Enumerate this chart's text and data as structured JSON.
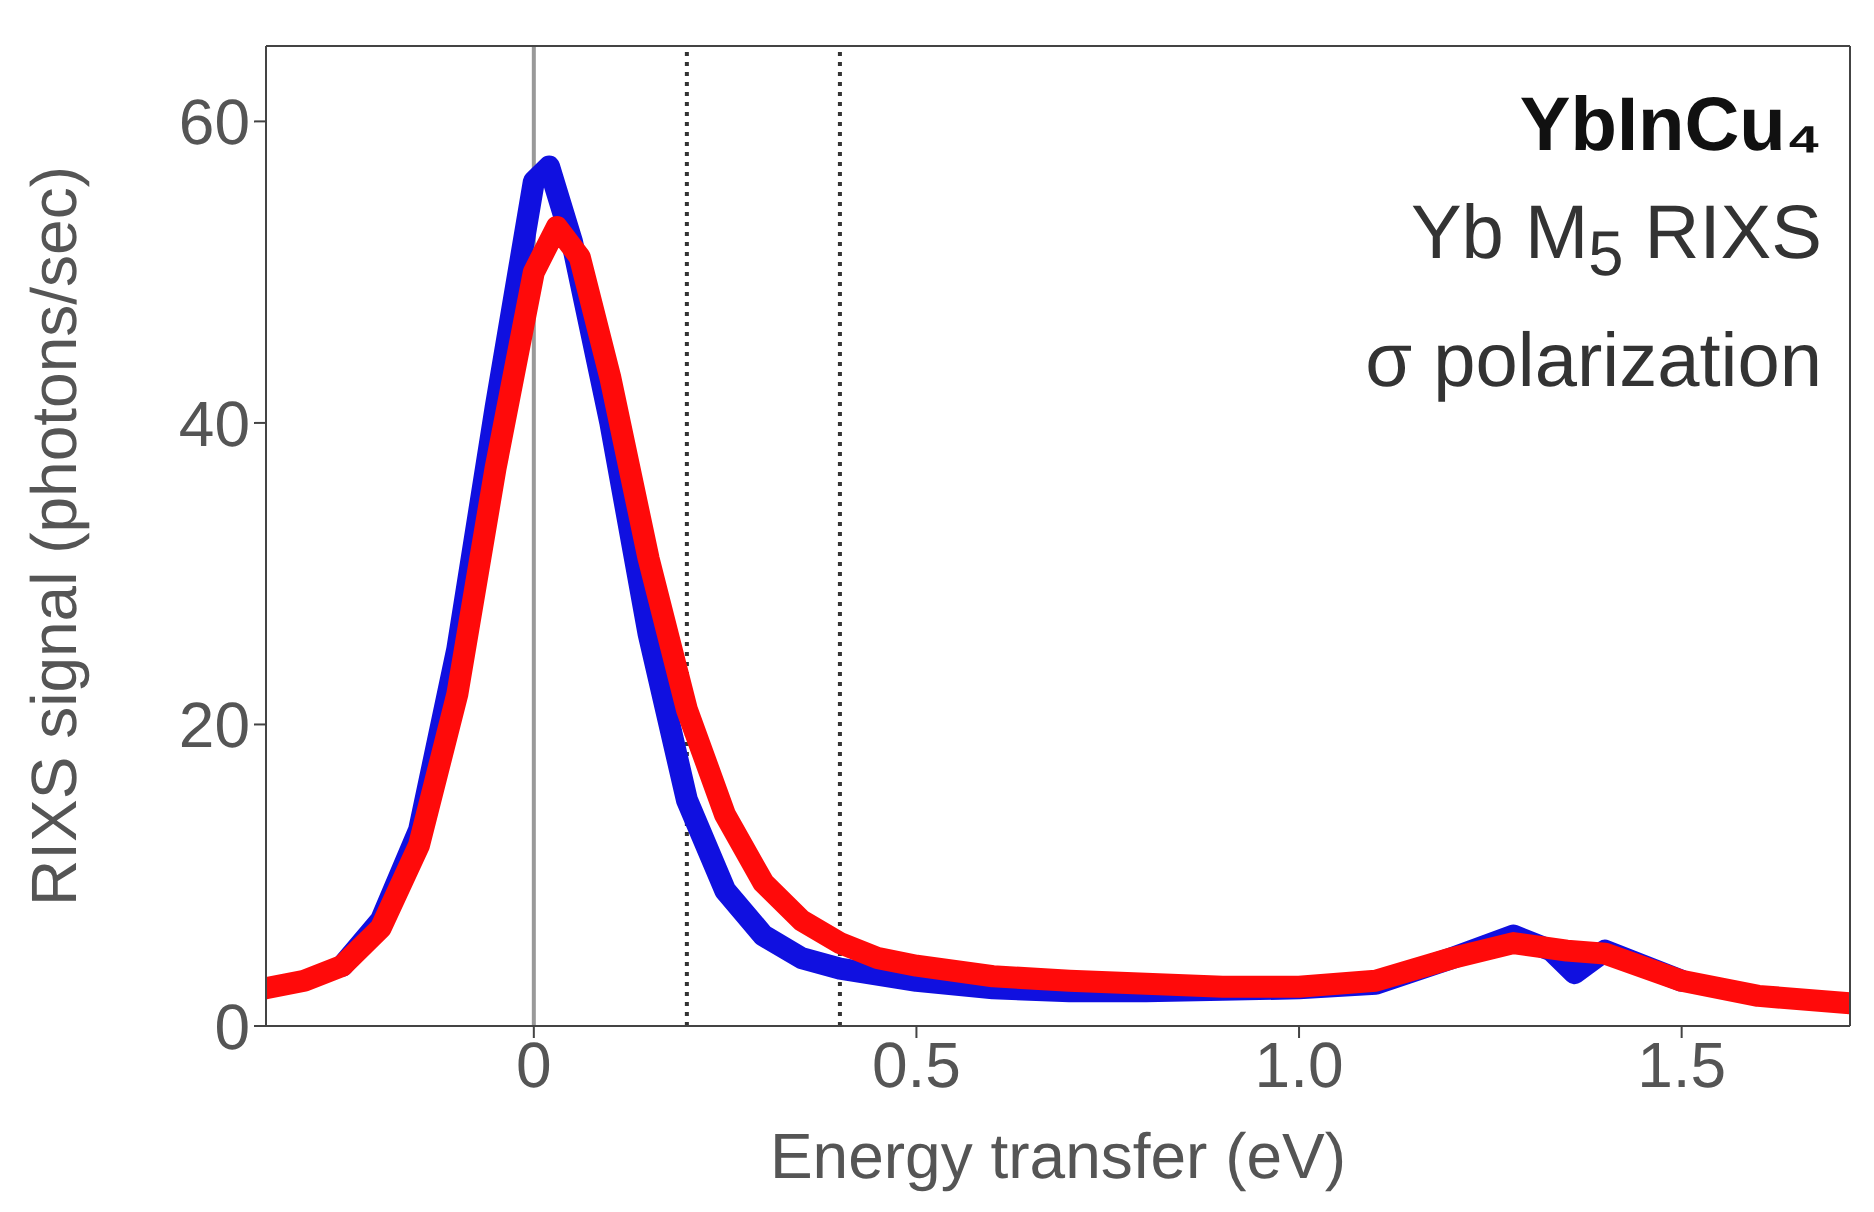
{
  "chart_data": {
    "type": "line",
    "xlabel": "Energy transfer (eV)",
    "ylabel": "RIXS signal (photons/sec)",
    "xlim": [
      -0.35,
      1.72
    ],
    "xticks": [
      0,
      {
        "value": 0.5,
        "label": "0.5"
      },
      {
        "value": 1,
        "label": "1.0"
      },
      {
        "value": 1.5,
        "label": "1.5"
      }
    ],
    "ylim": [
      0,
      65
    ],
    "yticks": [
      0,
      20,
      40,
      60
    ],
    "marker": "none",
    "line_style": "solid",
    "annotations": [
      "YbInCu₄",
      "Yb M$_{5}$ RIXS",
      "σ polarization"
    ],
    "ref_lines": [
      {
        "axis": "x",
        "value": 0,
        "color": "#999999",
        "line_style": "solid"
      },
      {
        "axis": "x",
        "value": 0.2,
        "color": "#333333",
        "line_style": "dotted"
      },
      {
        "axis": "x",
        "value": 0.4,
        "color": "#333333",
        "line_style": "dotted"
      }
    ],
    "series": [
      {
        "color": "#1010e0",
        "x": [
          -0.25,
          -0.2,
          -0.15,
          -0.1,
          -0.05,
          0,
          0.02,
          0.05,
          0.1,
          0.15,
          0.2,
          0.25,
          0.3,
          0.35,
          0.4,
          0.5,
          0.6,
          0.7,
          0.8,
          0.9,
          1.0,
          1.1,
          1.2,
          1.28,
          1.33,
          1.36,
          1.4,
          1.5
        ],
        "values": [
          4,
          7,
          13,
          25,
          41,
          56,
          57,
          52,
          40,
          26,
          15,
          9,
          6,
          4.5,
          3.8,
          3,
          2.5,
          2.3,
          2.3,
          2.4,
          2.5,
          2.8,
          4.5,
          6,
          5,
          3.5,
          5,
          3
        ]
      },
      {
        "color": "#ff0a0a",
        "x": [
          -0.35,
          -0.3,
          -0.25,
          -0.2,
          -0.15,
          -0.1,
          -0.05,
          0,
          0.03,
          0.06,
          0.1,
          0.15,
          0.2,
          0.25,
          0.3,
          0.35,
          0.4,
          0.45,
          0.5,
          0.6,
          0.7,
          0.8,
          0.9,
          1.0,
          1.1,
          1.2,
          1.28,
          1.35,
          1.4,
          1.5,
          1.6,
          1.72
        ],
        "values": [
          2.5,
          3,
          4,
          6.5,
          12,
          22,
          37,
          50,
          53,
          51,
          43,
          31,
          21,
          14,
          9.5,
          7,
          5.5,
          4.5,
          4,
          3.3,
          3,
          2.8,
          2.6,
          2.6,
          3,
          4.5,
          5.5,
          5,
          4.8,
          3,
          2,
          1.5
        ]
      }
    ]
  }
}
